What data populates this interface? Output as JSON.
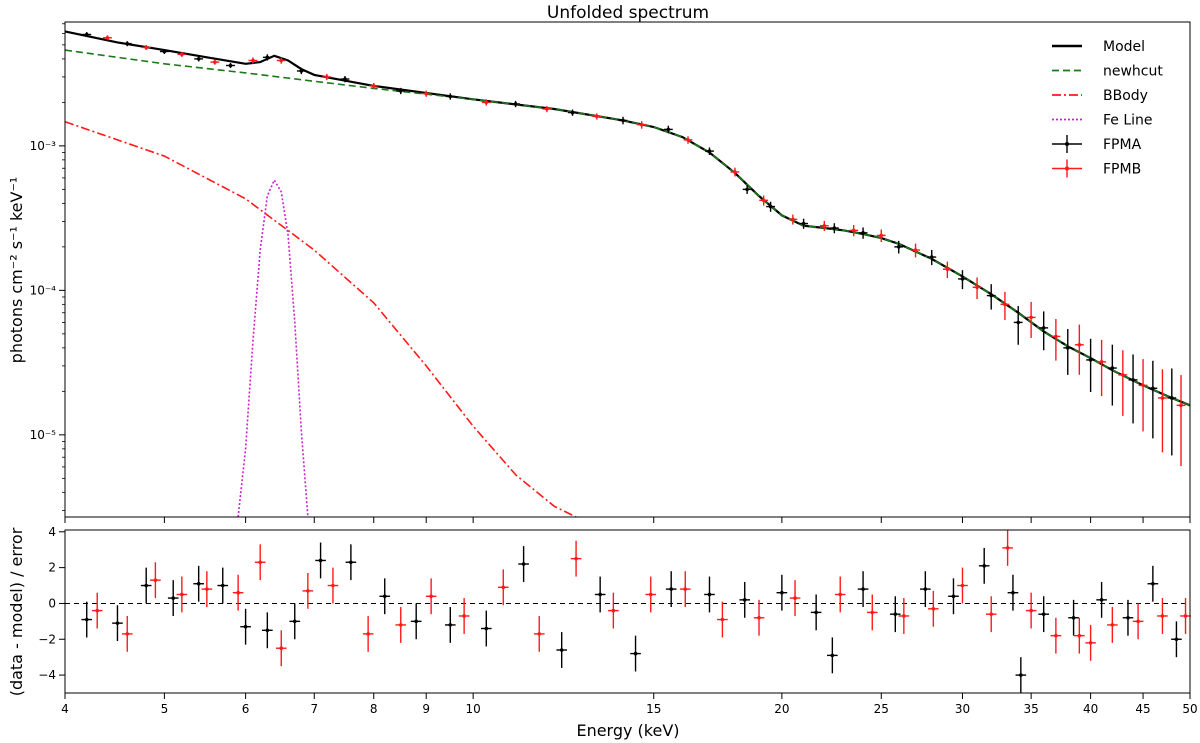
{
  "title": "Unfolded spectrum",
  "chart_data": [
    {
      "type": "line",
      "panel": "top",
      "title": "Unfolded spectrum",
      "xscale": "log",
      "yscale": "log",
      "xlim": [
        4,
        50
      ],
      "ylim": [
        2.7e-06,
        0.0072
      ],
      "ylabel": "photons cm⁻² s⁻¹ keV⁻¹",
      "yticks": [
        {
          "value": 1e-05,
          "label": "10⁻⁵"
        },
        {
          "value": 0.0001,
          "label": "10⁻⁴"
        },
        {
          "value": 0.001,
          "label": "10⁻³"
        }
      ],
      "legend": {
        "placement": "top-right",
        "entries": [
          {
            "label": "Model",
            "color": "#000000",
            "style": "solid"
          },
          {
            "label": "newhcut",
            "color": "#1a7a1a",
            "style": "dashed"
          },
          {
            "label": "BBody",
            "color": "#ff1a1a",
            "style": "dashdot"
          },
          {
            "label": "Fe Line",
            "color": "#cc22cc",
            "style": "dotted"
          },
          {
            "label": "FPMA",
            "color": "#000000",
            "style": "errorbar"
          },
          {
            "label": "FPMB",
            "color": "#ff1a1a",
            "style": "errorbar"
          }
        ]
      },
      "series": [
        {
          "name": "newhcut",
          "x": [
            4,
            5,
            6,
            7,
            8,
            10,
            12,
            14,
            15,
            16,
            17,
            18,
            19,
            20,
            21,
            22,
            23,
            24,
            25,
            26,
            28,
            30,
            32,
            34,
            36,
            38,
            40,
            42,
            45,
            48,
            50
          ],
          "y": [
            0.0046,
            0.0037,
            0.0032,
            0.0028,
            0.0025,
            0.0021,
            0.0018,
            0.0015,
            0.00135,
            0.00115,
            0.0009,
            0.00065,
            0.00045,
            0.00033,
            0.00028,
            0.00027,
            0.00026,
            0.000245,
            0.00023,
            0.00021,
            0.000165,
            0.000125,
            9.4e-05,
            7e-05,
            5.2e-05,
            4.1e-05,
            3.4e-05,
            2.8e-05,
            2.2e-05,
            1.8e-05,
            1.6e-05
          ]
        },
        {
          "name": "BBody",
          "x": [
            4,
            5,
            6,
            7,
            8,
            9,
            10,
            11,
            12,
            12.6
          ],
          "y": [
            0.00147,
            0.00085,
            0.00043,
            0.00019,
            8.2e-05,
            3e-05,
            1.15e-05,
            5.3e-06,
            3.2e-06,
            2.7e-06
          ]
        },
        {
          "name": "Fe Line",
          "x": [
            5.9,
            6.0,
            6.1,
            6.2,
            6.3,
            6.4,
            6.5,
            6.6,
            6.7,
            6.8,
            6.9
          ],
          "y": [
            2.7e-06,
            8e-06,
            4.5e-05,
            0.00019,
            0.00045,
            0.00058,
            0.00048,
            0.00024,
            6e-05,
            1.05e-05,
            2.7e-06
          ]
        },
        {
          "name": "Model",
          "x": [
            4,
            4.5,
            5,
            5.5,
            6,
            6.2,
            6.4,
            6.6,
            6.8,
            7,
            8,
            10,
            12,
            14,
            15,
            16,
            17,
            18,
            19,
            20,
            21,
            22,
            23,
            24,
            25,
            26,
            28,
            30,
            32,
            34,
            36,
            38,
            40,
            42,
            45,
            48,
            50
          ],
          "y": [
            0.0062,
            0.0052,
            0.0046,
            0.0041,
            0.0037,
            0.0038,
            0.0042,
            0.0039,
            0.0034,
            0.0031,
            0.0026,
            0.0021,
            0.0018,
            0.0015,
            0.00135,
            0.00115,
            0.0009,
            0.00065,
            0.00045,
            0.00033,
            0.00028,
            0.00027,
            0.00026,
            0.000245,
            0.00023,
            0.00021,
            0.000165,
            0.000125,
            9.4e-05,
            7e-05,
            5.2e-05,
            4.1e-05,
            3.4e-05,
            2.8e-05,
            2.2e-05,
            1.8e-05,
            1.6e-05
          ]
        },
        {
          "name": "FPMA",
          "x": [
            4.2,
            4.6,
            5.0,
            5.4,
            5.8,
            6.3,
            6.8,
            7.5,
            8.5,
            9.5,
            11,
            12.5,
            14,
            15.5,
            17,
            18.5,
            19.5,
            21,
            22.5,
            24,
            26,
            28,
            30,
            32,
            34,
            36,
            38,
            40,
            42,
            44,
            46,
            48
          ],
          "y": [
            0.0059,
            0.0051,
            0.0045,
            0.004,
            0.0036,
            0.0041,
            0.0033,
            0.0029,
            0.0024,
            0.0022,
            0.00195,
            0.0017,
            0.0015,
            0.0013,
            0.00092,
            0.0005,
            0.00038,
            0.00029,
            0.00027,
            0.00025,
            0.0002,
            0.00017,
            0.00012,
            9.2e-05,
            6e-05,
            5.5e-05,
            4e-05,
            3.3e-05,
            2.9e-05,
            2.4e-05,
            2.1e-05,
            1.8e-05
          ],
          "yerr_frac": [
            0.04,
            0.04,
            0.04,
            0.04,
            0.04,
            0.05,
            0.05,
            0.05,
            0.05,
            0.05,
            0.05,
            0.05,
            0.06,
            0.06,
            0.06,
            0.07,
            0.08,
            0.08,
            0.08,
            0.09,
            0.1,
            0.12,
            0.15,
            0.2,
            0.3,
            0.3,
            0.35,
            0.4,
            0.45,
            0.5,
            0.55,
            0.6
          ]
        },
        {
          "name": "FPMB",
          "x": [
            4.4,
            4.8,
            5.2,
            5.6,
            6.1,
            6.5,
            7.2,
            8.0,
            9.0,
            10.3,
            11.8,
            13.2,
            14.6,
            16.2,
            18,
            19.2,
            20.5,
            22,
            23.5,
            25,
            27,
            29,
            31,
            33,
            35,
            37,
            39,
            41,
            43,
            45,
            47,
            49
          ],
          "y": [
            0.0056,
            0.0048,
            0.0043,
            0.0038,
            0.0039,
            0.0039,
            0.003,
            0.0026,
            0.0023,
            0.002,
            0.0018,
            0.0016,
            0.0014,
            0.0011,
            0.00066,
            0.00042,
            0.00031,
            0.00028,
            0.00026,
            0.00024,
            0.00019,
            0.00014,
            0.000105,
            8e-05,
            6.5e-05,
            4.8e-05,
            4.2e-05,
            3.2e-05,
            2.6e-05,
            2.2e-05,
            1.8e-05,
            1.6e-05
          ],
          "yerr_frac": [
            0.04,
            0.04,
            0.04,
            0.04,
            0.05,
            0.05,
            0.05,
            0.05,
            0.05,
            0.05,
            0.05,
            0.05,
            0.06,
            0.06,
            0.07,
            0.08,
            0.08,
            0.08,
            0.09,
            0.1,
            0.11,
            0.13,
            0.17,
            0.22,
            0.28,
            0.32,
            0.38,
            0.42,
            0.48,
            0.52,
            0.58,
            0.62
          ]
        }
      ]
    },
    {
      "type": "scatter",
      "panel": "bottom",
      "xscale": "log",
      "xlim": [
        4,
        50
      ],
      "ylim": [
        -5,
        4.1
      ],
      "xlabel": "Energy (keV)",
      "ylabel": "(data - model) / error",
      "yticks": [
        {
          "value": 4,
          "label": "4"
        },
        {
          "value": 2,
          "label": "2"
        },
        {
          "value": 0,
          "label": "0"
        },
        {
          "value": -2,
          "label": "−2"
        },
        {
          "value": -4,
          "label": "−4"
        }
      ],
      "xticks": [
        {
          "value": 4,
          "label": "4"
        },
        {
          "value": 5,
          "label": "5"
        },
        {
          "value": 6,
          "label": "6"
        },
        {
          "value": 7,
          "label": "7"
        },
        {
          "value": 8,
          "label": "8"
        },
        {
          "value": 9,
          "label": "9"
        },
        {
          "value": 10,
          "label": "10"
        },
        {
          "value": 15,
          "label": "15"
        },
        {
          "value": 20,
          "label": "20"
        },
        {
          "value": 25,
          "label": "25"
        },
        {
          "value": 30,
          "label": "30"
        },
        {
          "value": 35,
          "label": "35"
        },
        {
          "value": 40,
          "label": "40"
        },
        {
          "value": 45,
          "label": "45"
        },
        {
          "value": 50,
          "label": "50"
        }
      ],
      "reference_line": 0,
      "series": [
        {
          "name": "FPMA",
          "x": [
            4.2,
            4.5,
            4.8,
            5.1,
            5.4,
            5.7,
            6.0,
            6.3,
            6.7,
            7.1,
            7.6,
            8.2,
            8.8,
            9.5,
            10.3,
            11.2,
            12.2,
            13.3,
            14.4,
            15.6,
            17.0,
            18.4,
            20.0,
            21.6,
            22.4,
            24.0,
            25.8,
            27.6,
            29.4,
            31.5,
            33.6,
            34.2,
            36.0,
            38.5,
            41.0,
            43.5,
            46.0,
            48.5
          ],
          "y": [
            -0.9,
            -1.1,
            1.0,
            0.3,
            1.1,
            1.0,
            -1.3,
            -1.5,
            -1.0,
            2.4,
            2.3,
            0.4,
            -1.0,
            -1.2,
            -1.4,
            2.2,
            -2.6,
            0.5,
            -2.8,
            0.8,
            0.5,
            0.2,
            0.6,
            -0.5,
            -2.9,
            0.8,
            -0.6,
            0.8,
            0.4,
            2.1,
            0.6,
            -4.0,
            -0.6,
            -0.8,
            0.2,
            -0.8,
            1.1,
            -2.0
          ]
        },
        {
          "name": "FPMB",
          "x": [
            4.3,
            4.6,
            4.9,
            5.2,
            5.5,
            5.9,
            6.2,
            6.5,
            6.9,
            7.3,
            7.9,
            8.5,
            9.1,
            9.8,
            10.7,
            11.6,
            12.6,
            13.7,
            14.9,
            16.1,
            17.5,
            19.0,
            20.6,
            22.8,
            24.5,
            26.3,
            28.1,
            30.0,
            32.0,
            33.2,
            35.0,
            37.0,
            39.0,
            40.0,
            42.0,
            44.5,
            47.0,
            49.5
          ],
          "y": [
            -0.4,
            -1.7,
            1.3,
            0.5,
            0.8,
            0.6,
            2.3,
            -2.5,
            0.7,
            1.0,
            -1.7,
            -1.2,
            0.4,
            -0.7,
            0.9,
            -1.7,
            2.5,
            -0.4,
            0.5,
            0.8,
            -0.9,
            -0.8,
            0.3,
            0.5,
            -0.5,
            -0.7,
            -0.3,
            1.0,
            -0.6,
            3.1,
            -0.4,
            -1.8,
            -1.8,
            -2.2,
            -1.2,
            -1.0,
            -0.7,
            -0.7
          ]
        }
      ]
    }
  ]
}
